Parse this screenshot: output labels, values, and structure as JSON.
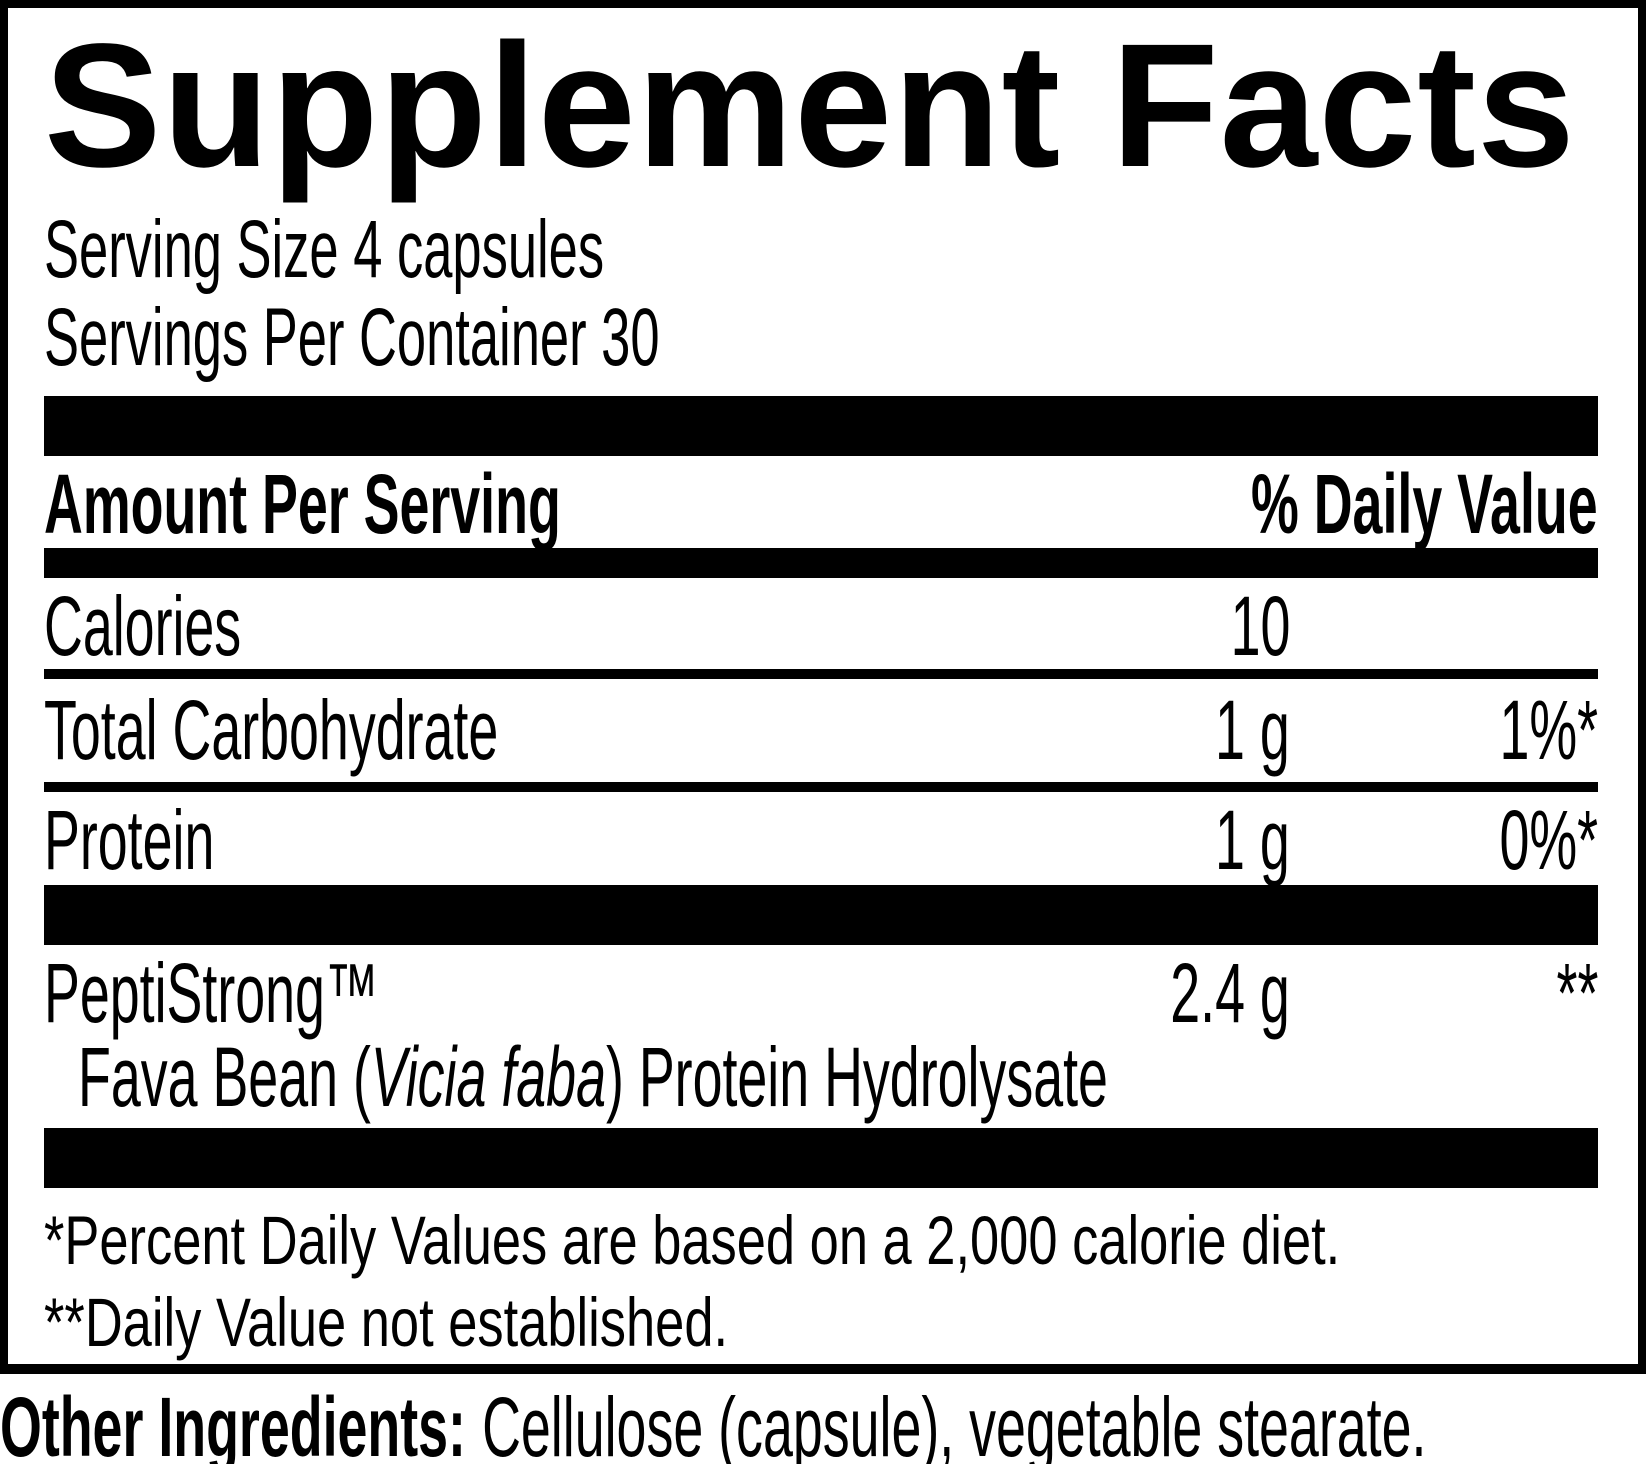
{
  "panel": {
    "title": "Supplement Facts",
    "serving_size": "Serving Size 4 capsules",
    "servings_per_container": "Servings Per Container 30",
    "columns": {
      "amount_header": "Amount Per Serving",
      "daily_value_header": "% Daily Value"
    },
    "nutrients": [
      {
        "name": "Calories",
        "amount": "10",
        "daily_value": ""
      },
      {
        "name": "Total Carbohydrate",
        "amount": "1 g",
        "daily_value": "1%*"
      },
      {
        "name": "Protein",
        "amount": "1 g",
        "daily_value": "0%*"
      }
    ],
    "proprietary": {
      "name": "PeptiStrong™",
      "amount": "2.4 g",
      "daily_value": "**",
      "description_prefix": "Fava Bean (",
      "description_latin": "Vicia faba",
      "description_suffix": ") Protein Hydrolysate"
    },
    "footnotes": [
      "*Percent Daily Values are based on a 2,000 calorie diet.",
      "**Daily Value not established."
    ]
  },
  "other_ingredients": {
    "label": "Other Ingredients:",
    "text": "Cellulose (capsule), vegetable stearate."
  },
  "colors": {
    "ink": "#000000",
    "paper": "#ffffff"
  }
}
